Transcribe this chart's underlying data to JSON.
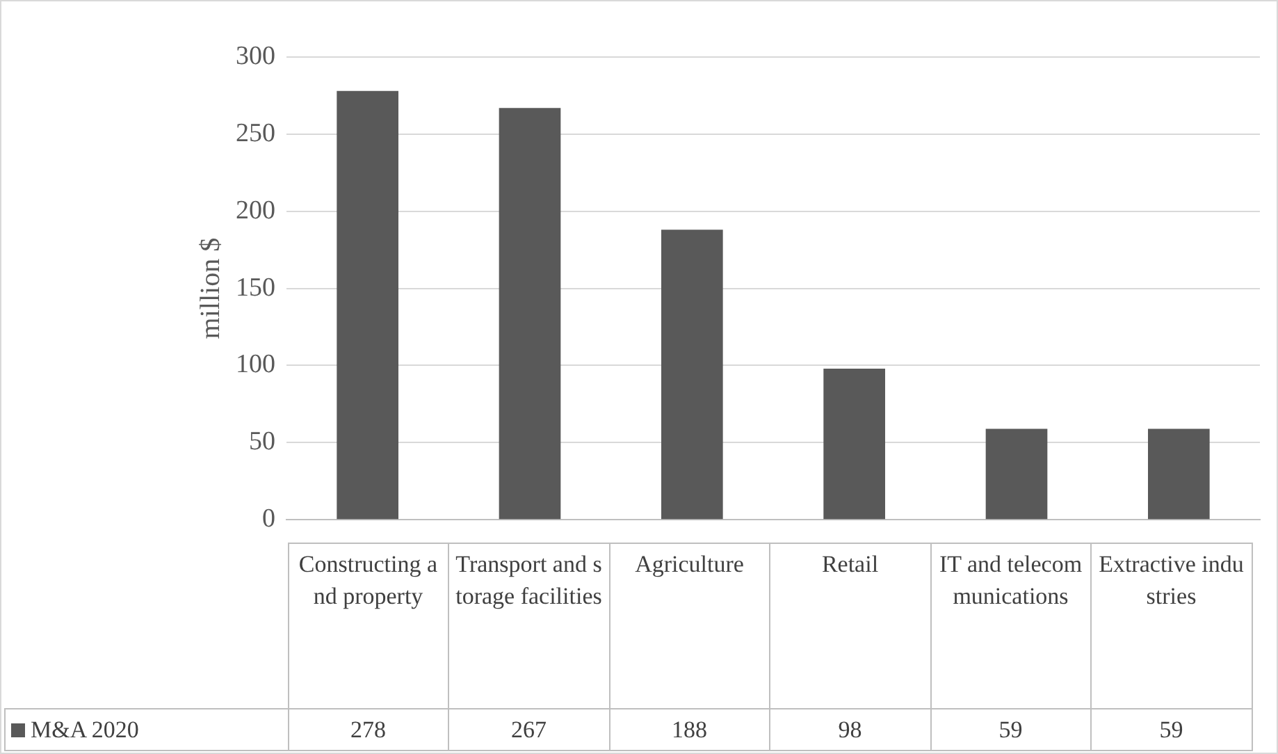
{
  "chart_data": {
    "type": "bar",
    "ylabel": "million $",
    "categories": [
      "Constructing and property",
      "Transport and storage facilities",
      "Agriculture",
      "Retail",
      "IT and telecommunications",
      "Extractive industries"
    ],
    "series": [
      {
        "name": "M&A 2020",
        "color": "#595959",
        "values": [
          278,
          267,
          188,
          98,
          59,
          59
        ]
      }
    ],
    "ylim": [
      0,
      300
    ],
    "yticks": [
      0,
      50,
      100,
      150,
      200,
      250,
      300
    ],
    "grid": true,
    "legend": "bottom",
    "data_labels": true
  }
}
